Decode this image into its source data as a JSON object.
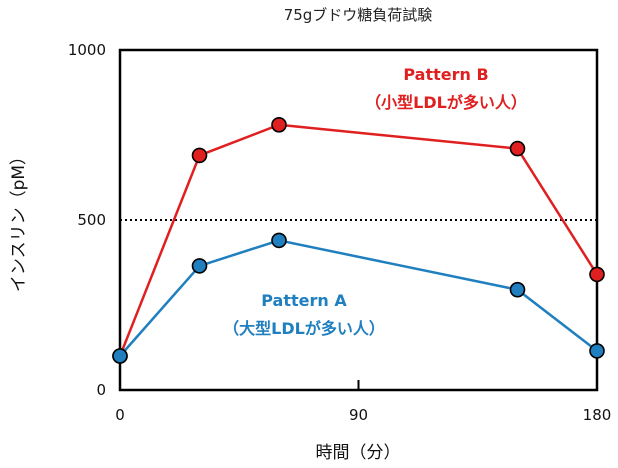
{
  "chart_data": {
    "type": "line",
    "title": "75gブドウ糖負荷試験",
    "xlabel": "時間（分）",
    "ylabel": "インスリン（pM）",
    "x": [
      0,
      30,
      60,
      150,
      180
    ],
    "xlim": [
      0,
      180
    ],
    "ylim": [
      0,
      1000
    ],
    "xticks": [
      "0",
      "90",
      "180"
    ],
    "yticks": [
      "0",
      "500",
      "1000"
    ],
    "reference_line": {
      "y": 500,
      "style": "dotted"
    },
    "grid": false,
    "series": [
      {
        "name": "Pattern B",
        "annotation_line1": "Pattern B",
        "annotation_line2": "（小型LDLが多い人）",
        "color": "#e02020",
        "values": [
          100,
          690,
          780,
          710,
          340
        ]
      },
      {
        "name": "Pattern A",
        "annotation_line1": "Pattern A",
        "annotation_line2": "（大型LDLが多い人）",
        "color": "#1f7fbf",
        "values": [
          100,
          365,
          440,
          295,
          115
        ]
      }
    ]
  }
}
